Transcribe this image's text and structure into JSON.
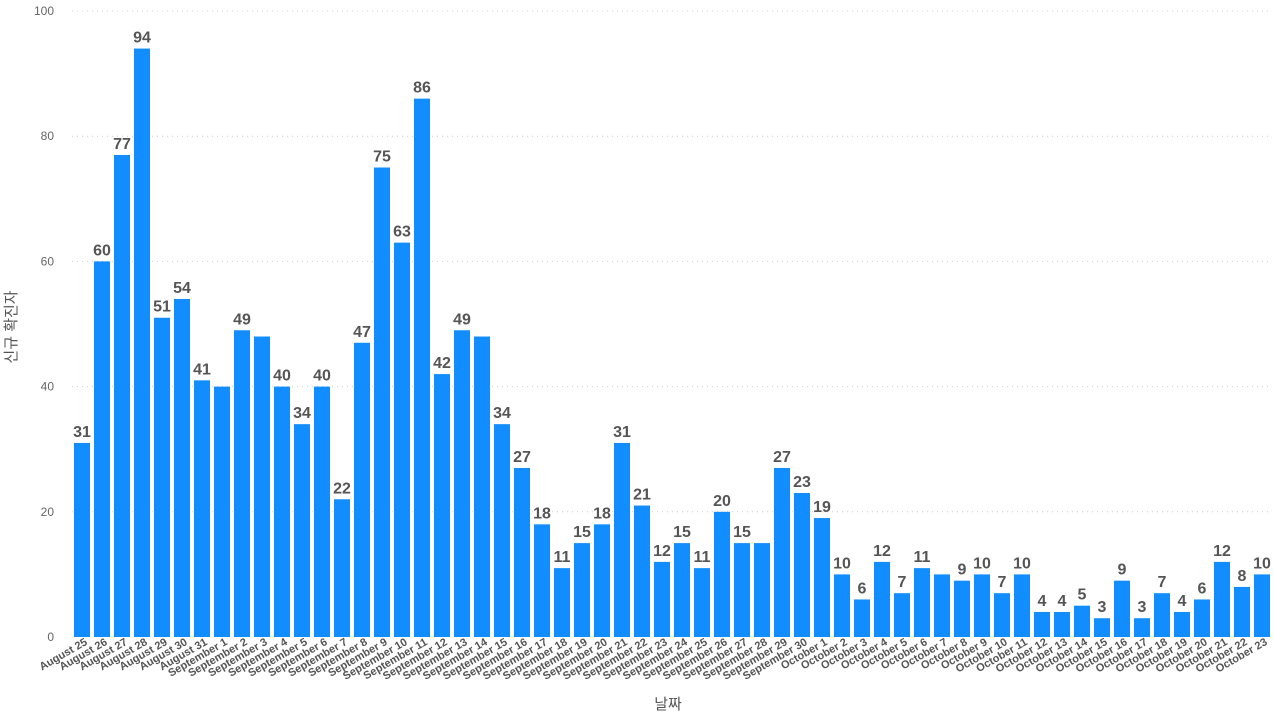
{
  "chart_data": {
    "type": "bar",
    "xlabel": "날짜",
    "ylabel": "신규 확진자",
    "ylim": [
      0,
      100
    ],
    "yticks": [
      0,
      20,
      40,
      60,
      80,
      100
    ],
    "grid": "horizontal-dotted",
    "bar_color": "#118DFF",
    "categories": [
      "August 25",
      "August 26",
      "August 27",
      "August 28",
      "August 29",
      "August 30",
      "August 31",
      "September 1",
      "September 2",
      "September 3",
      "September 4",
      "September 5",
      "September 6",
      "September 7",
      "September 8",
      "September 9",
      "September 10",
      "September 11",
      "September 12",
      "September 13",
      "September 14",
      "September 15",
      "September 16",
      "September 17",
      "September 18",
      "September 19",
      "September 20",
      "September 21",
      "September 22",
      "September 23",
      "September 24",
      "September 25",
      "September 26",
      "September 27",
      "September 28",
      "September 29",
      "September 30",
      "October 1",
      "October 2",
      "October 3",
      "October 4",
      "October 5",
      "October 6",
      "October 7",
      "October 8",
      "October 9",
      "October 10",
      "October 11",
      "October 12",
      "October 13",
      "October 14",
      "October 15",
      "October 16",
      "October 17",
      "October 18",
      "October 19",
      "October 20",
      "October 21",
      "October 22",
      "October 23"
    ],
    "values": [
      31,
      60,
      77,
      94,
      51,
      54,
      41,
      40,
      49,
      48,
      40,
      34,
      40,
      22,
      47,
      75,
      63,
      86,
      42,
      49,
      48,
      34,
      27,
      18,
      11,
      15,
      18,
      31,
      21,
      12,
      15,
      11,
      20,
      15,
      15,
      27,
      23,
      19,
      10,
      6,
      12,
      7,
      11,
      10,
      9,
      10,
      7,
      10,
      4,
      4,
      5,
      3,
      9,
      3,
      7,
      4,
      6,
      12,
      8,
      10
    ],
    "labeled": [
      true,
      true,
      true,
      true,
      true,
      true,
      true,
      false,
      true,
      false,
      true,
      true,
      true,
      true,
      true,
      true,
      true,
      true,
      true,
      true,
      false,
      true,
      true,
      true,
      true,
      true,
      true,
      true,
      true,
      true,
      true,
      true,
      true,
      true,
      false,
      true,
      true,
      true,
      true,
      true,
      true,
      true,
      true,
      false,
      true,
      true,
      true,
      true,
      true,
      true,
      true,
      true,
      true,
      true,
      true,
      true,
      true,
      true,
      true,
      true
    ]
  }
}
